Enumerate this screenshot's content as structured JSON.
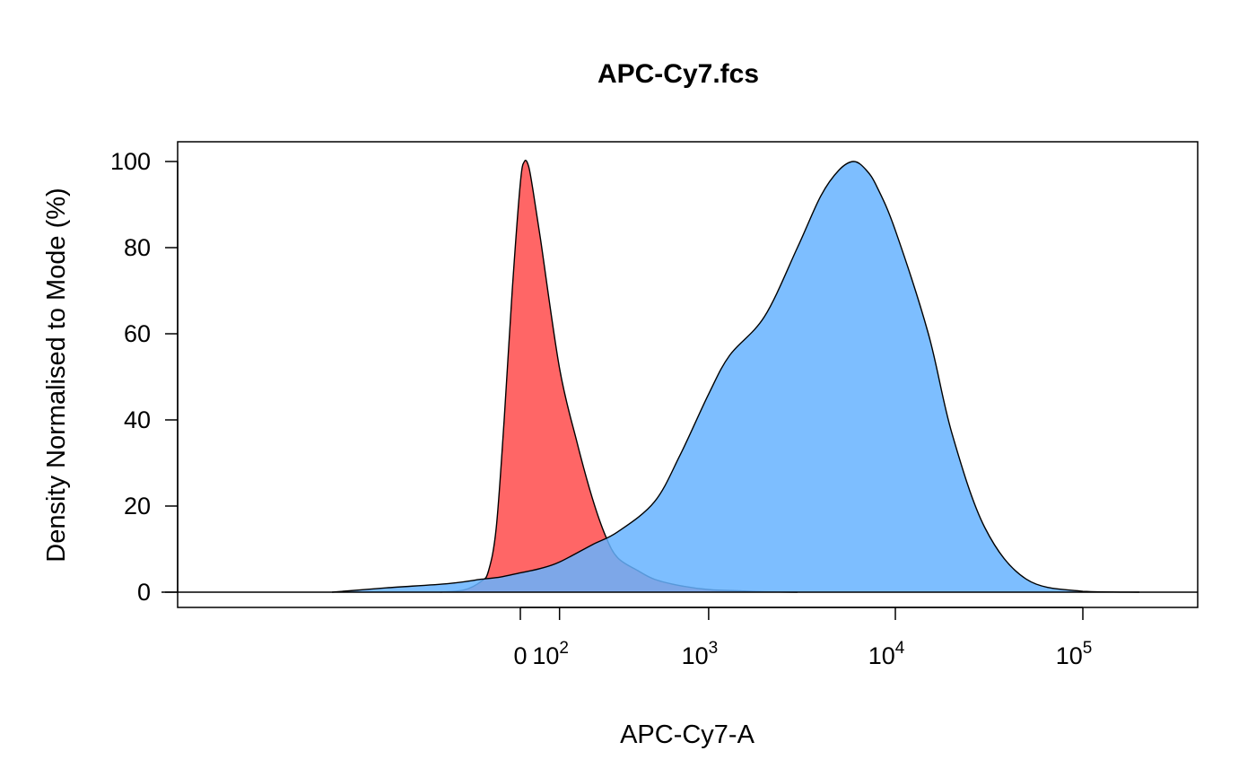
{
  "chart_data": {
    "type": "area",
    "title": "APC-Cy7.fcs",
    "xlabel": "APC-Cy7-A",
    "ylabel": "Density Normalised to Mode (%)",
    "ylim": [
      0,
      100
    ],
    "y_ticks": [
      {
        "value": 0,
        "label": "0"
      },
      {
        "value": 20,
        "label": "20"
      },
      {
        "value": 40,
        "label": "40"
      },
      {
        "value": 60,
        "label": "60"
      },
      {
        "value": 80,
        "label": "80"
      },
      {
        "value": 100,
        "label": "100"
      }
    ],
    "x_scale": "biexponential",
    "x_ticks": [
      {
        "value": 0,
        "base": "0",
        "exp": ""
      },
      {
        "value": 100,
        "base": "10",
        "exp": "2"
      },
      {
        "value": 1000,
        "base": "10",
        "exp": "3"
      },
      {
        "value": 10000,
        "base": "10",
        "exp": "4"
      },
      {
        "value": 100000,
        "base": "10",
        "exp": "5"
      }
    ],
    "legend": "none",
    "grid": false,
    "series": [
      {
        "color": "#ff6666",
        "x": [
          -230,
          -150,
          -100,
          -80,
          -60,
          -40,
          -20,
          0,
          10,
          20,
          30,
          50,
          100,
          150,
          200,
          250,
          300,
          400,
          500,
          700,
          1000,
          1500,
          2000,
          3000
        ],
        "values": [
          0,
          0.5,
          2.5,
          5,
          15,
          40,
          70,
          95,
          100,
          99,
          94,
          82,
          52,
          35,
          22,
          13,
          8,
          5,
          3,
          1.5,
          0.6,
          0.3,
          0.1,
          0
        ]
      },
      {
        "color": "#66b3ff",
        "x": [
          -1000,
          -500,
          -200,
          -100,
          -50,
          0,
          50,
          100,
          200,
          300,
          500,
          700,
          1000,
          1300,
          2000,
          3000,
          4000,
          5000,
          6000,
          7000,
          8000,
          10000,
          15000,
          20000,
          30000,
          50000,
          100000,
          200000
        ],
        "values": [
          0,
          1,
          2,
          3,
          3.5,
          4.5,
          5.5,
          7,
          11,
          14,
          21,
          32,
          46,
          55,
          64,
          80,
          92,
          98,
          100,
          98,
          94,
          84,
          60,
          37,
          15,
          3,
          0.2,
          0
        ]
      }
    ]
  }
}
